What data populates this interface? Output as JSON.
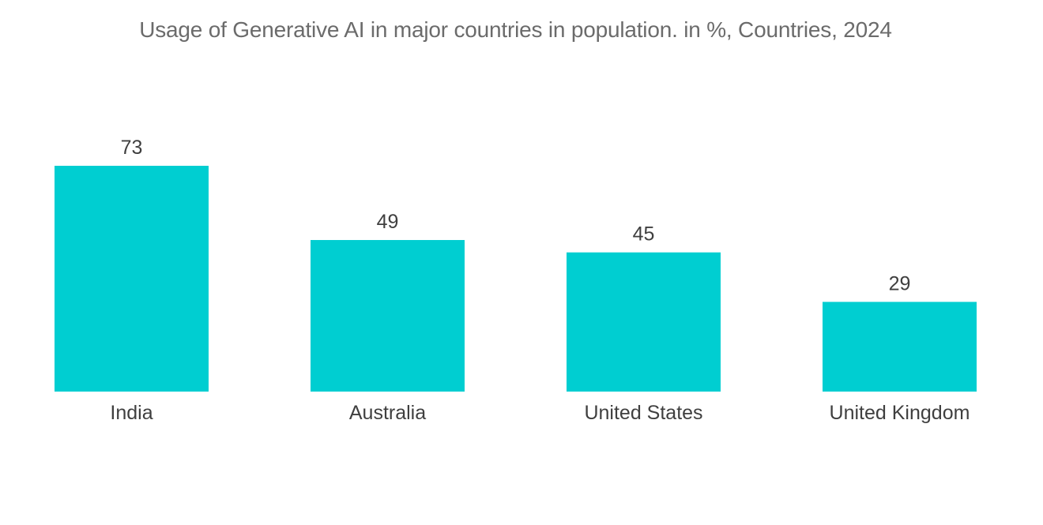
{
  "chart_data": {
    "type": "bar",
    "title": "Usage of Generative AI in major countries in population. in %, Countries, 2024",
    "categories": [
      "India",
      "Australia",
      "United States",
      "United Kingdom"
    ],
    "values": [
      73,
      49,
      45,
      29
    ],
    "xlabel": "",
    "ylabel": "",
    "ylim": [
      0,
      73
    ],
    "grid": false,
    "legend": "none",
    "bar_color": "#00CED1"
  }
}
